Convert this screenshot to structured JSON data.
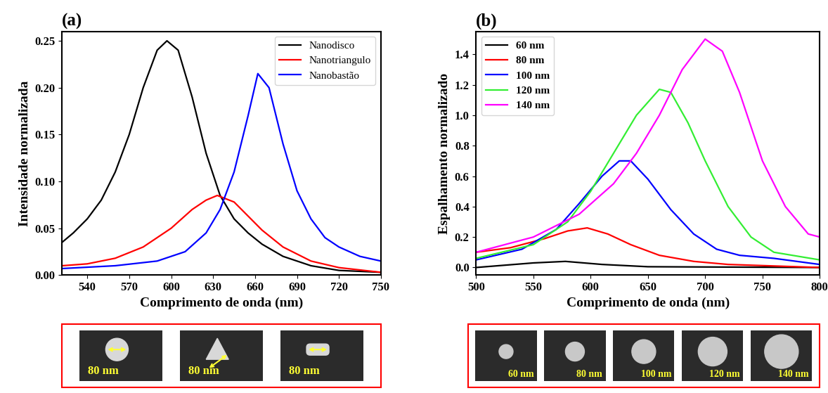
{
  "chart_data": [
    {
      "type": "line",
      "title": "(a)",
      "x_label": "Comprimento de onda (nm)",
      "y_label": "Intensidade normalizada",
      "xlim": [
        522,
        750
      ],
      "xticks": [
        540,
        570,
        600,
        630,
        660,
        690,
        720,
        750
      ],
      "ylim": [
        0,
        0.26
      ],
      "yticks": [
        {
          "value": 0,
          "label": "0.00"
        },
        {
          "value": 0.05,
          "label": "0.05"
        },
        {
          "value": 0.1,
          "label": "0.10"
        },
        {
          "value": 0.15,
          "label": "0.15"
        },
        {
          "value": 0.2,
          "label": "0.20"
        },
        {
          "value": 0.25,
          "label": "0.25"
        }
      ],
      "legend": "upper right",
      "series": [
        {
          "name": "Nanodisco",
          "color": "#000000",
          "x": [
            522,
            530,
            540,
            550,
            560,
            570,
            580,
            590,
            597,
            605,
            615,
            625,
            635,
            645,
            655,
            665,
            680,
            700,
            720,
            750
          ],
          "values": [
            0.035,
            0.045,
            0.06,
            0.08,
            0.11,
            0.15,
            0.2,
            0.24,
            0.25,
            0.24,
            0.19,
            0.13,
            0.085,
            0.06,
            0.045,
            0.033,
            0.02,
            0.01,
            0.005,
            0.003
          ]
        },
        {
          "name": "Nanotriangulo",
          "color": "#ff0000",
          "x": [
            522,
            540,
            560,
            580,
            600,
            615,
            625,
            633,
            645,
            655,
            665,
            680,
            700,
            720,
            750
          ],
          "values": [
            0.01,
            0.012,
            0.018,
            0.03,
            0.05,
            0.07,
            0.08,
            0.085,
            0.078,
            0.063,
            0.048,
            0.03,
            0.015,
            0.008,
            0.003
          ]
        },
        {
          "name": "Nanobastão",
          "color": "#0000ff",
          "x": [
            522,
            560,
            590,
            610,
            625,
            635,
            645,
            655,
            662,
            670,
            680,
            690,
            700,
            710,
            720,
            735,
            750
          ],
          "values": [
            0.007,
            0.01,
            0.015,
            0.025,
            0.045,
            0.07,
            0.11,
            0.17,
            0.215,
            0.2,
            0.14,
            0.09,
            0.06,
            0.04,
            0.03,
            0.02,
            0.015
          ]
        }
      ],
      "annotations": [
        "80 nm",
        "80 nm",
        "80 nm"
      ]
    },
    {
      "type": "line",
      "title": "(b)",
      "x_label": "Comprimento de onda (nm)",
      "y_label": "Espalhamento normalizado",
      "xlim": [
        500,
        800
      ],
      "xticks": [
        500,
        550,
        600,
        650,
        700,
        750,
        800
      ],
      "ylim": [
        -0.05,
        1.55
      ],
      "yticks": [
        {
          "value": 0,
          "label": "0.0"
        },
        {
          "value": 0.2,
          "label": "0.2"
        },
        {
          "value": 0.4,
          "label": "0.4"
        },
        {
          "value": 0.6,
          "label": "0.6"
        },
        {
          "value": 0.8,
          "label": "0.8"
        },
        {
          "value": 1.0,
          "label": "1.0"
        },
        {
          "value": 1.2,
          "label": "1.2"
        },
        {
          "value": 1.4,
          "label": "1.4"
        }
      ],
      "legend": "upper left",
      "series": [
        {
          "name": "60 nm",
          "color": "#000000",
          "x": [
            500,
            550,
            578,
            610,
            650,
            800
          ],
          "values": [
            0.0,
            0.03,
            0.04,
            0.02,
            0.005,
            0.0
          ]
        },
        {
          "name": "80 nm",
          "color": "#ff0000",
          "x": [
            500,
            530,
            560,
            580,
            597,
            615,
            635,
            660,
            690,
            720,
            760,
            800
          ],
          "values": [
            0.1,
            0.13,
            0.19,
            0.24,
            0.26,
            0.22,
            0.15,
            0.08,
            0.04,
            0.02,
            0.01,
            0.0
          ]
        },
        {
          "name": "100 nm",
          "color": "#0000ff",
          "x": [
            500,
            540,
            570,
            590,
            610,
            625,
            635,
            650,
            670,
            690,
            710,
            730,
            760,
            800
          ],
          "values": [
            0.05,
            0.12,
            0.25,
            0.42,
            0.6,
            0.7,
            0.7,
            0.58,
            0.38,
            0.22,
            0.12,
            0.08,
            0.06,
            0.02
          ]
        },
        {
          "name": "120 nm",
          "color": "#33ee33",
          "x": [
            500,
            550,
            580,
            600,
            620,
            640,
            660,
            670,
            685,
            700,
            720,
            740,
            760,
            800
          ],
          "values": [
            0.06,
            0.15,
            0.3,
            0.5,
            0.75,
            1.0,
            1.17,
            1.15,
            0.95,
            0.7,
            0.4,
            0.2,
            0.1,
            0.05
          ]
        },
        {
          "name": "140 nm",
          "color": "#ff00ff",
          "x": [
            500,
            550,
            590,
            620,
            640,
            660,
            680,
            700,
            715,
            730,
            750,
            770,
            790,
            800
          ],
          "values": [
            0.1,
            0.2,
            0.35,
            0.55,
            0.75,
            1.0,
            1.3,
            1.5,
            1.42,
            1.15,
            0.7,
            0.4,
            0.22,
            0.2
          ]
        }
      ],
      "annotations": [
        "60 nm",
        "80 nm",
        "100 nm",
        "120 nm",
        "140 nm"
      ]
    }
  ]
}
